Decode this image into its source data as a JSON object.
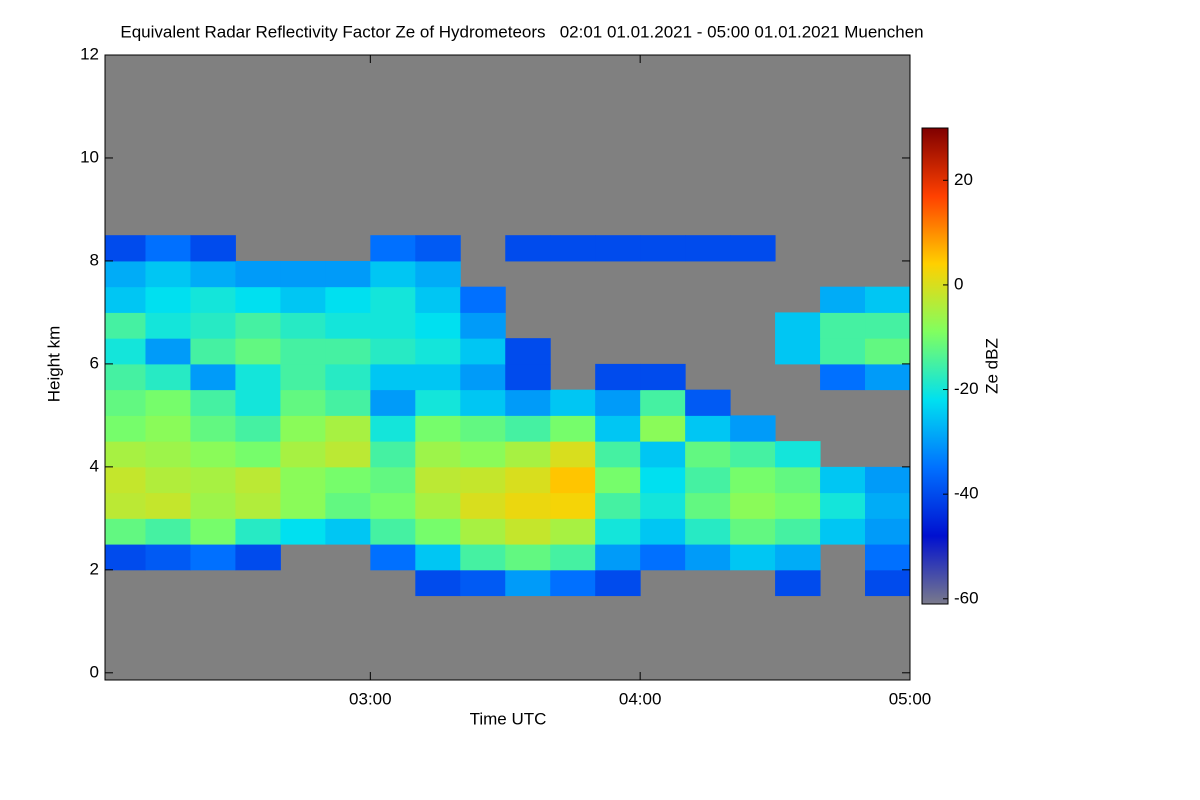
{
  "chart_data": {
    "type": "heatmap",
    "title": "Equivalent Radar Reflectivity Factor Ze of Hydrometeors   02:01 01.01.2021 - 05:00 01.01.2021 Muenchen",
    "x_label": "Time UTC",
    "y_label": "Height km",
    "colorbar_label": "Ze dBZ",
    "background": "#808080",
    "xlim": [
      2.0167,
      5.0
    ],
    "xticks": [
      {
        "value": 3,
        "label": "03:00"
      },
      {
        "value": 4,
        "label": "04:00"
      },
      {
        "value": 5,
        "label": "05:00"
      }
    ],
    "ylim": [
      -0.14,
      12
    ],
    "yticks": [
      0,
      2,
      4,
      6,
      8,
      10,
      12
    ],
    "x_bins": [
      2.0167,
      2.1667,
      2.3333,
      2.5,
      2.6667,
      2.8333,
      3.0,
      3.1667,
      3.3333,
      3.5,
      3.6667,
      3.8333,
      4.0,
      4.1667,
      4.3333,
      4.5,
      4.6667,
      4.8333,
      5.0
    ],
    "y_bins": [
      1.5,
      2.0,
      2.5,
      3.0,
      3.5,
      4.0,
      4.5,
      5.0,
      5.5,
      6.0,
      6.5,
      7.0,
      7.5,
      8.0,
      8.5
    ],
    "values": [
      [
        null,
        null,
        null,
        null,
        null,
        null,
        null,
        -40,
        -38,
        -30,
        -35,
        -40,
        null,
        null,
        null,
        -40,
        null,
        -40
      ],
      [
        -40,
        -38,
        -35,
        -40,
        null,
        null,
        -35,
        -25,
        -15,
        -12,
        -15,
        -30,
        -35,
        -30,
        -25,
        -28,
        null,
        -35
      ],
      [
        -12,
        -15,
        -10,
        -18,
        -22,
        -25,
        -15,
        -10,
        -5,
        -2,
        -5,
        -20,
        -25,
        -18,
        -12,
        -15,
        -25,
        -30
      ],
      [
        -3,
        -2,
        -6,
        -4,
        -8,
        -12,
        -10,
        -5,
        0,
        2,
        3,
        -15,
        -20,
        -12,
        -8,
        -10,
        -20,
        -28
      ],
      [
        -2,
        -4,
        -5,
        -3,
        -8,
        -10,
        -12,
        -3,
        -2,
        0,
        5,
        -10,
        -22,
        -15,
        -10,
        -12,
        -25,
        -30
      ],
      [
        -5,
        -6,
        -8,
        -10,
        -5,
        -3,
        -15,
        -6,
        -8,
        -5,
        0,
        -15,
        -25,
        -12,
        -15,
        -20,
        null,
        null
      ],
      [
        -10,
        -8,
        -12,
        -15,
        -8,
        -5,
        -20,
        -10,
        -12,
        -15,
        -10,
        -25,
        -8,
        -25,
        -30,
        null,
        null,
        null
      ],
      [
        -12,
        -10,
        -15,
        -20,
        -12,
        -15,
        -30,
        -20,
        -25,
        -30,
        -25,
        -30,
        -15,
        -38,
        null,
        null,
        null,
        null
      ],
      [
        -15,
        -18,
        -30,
        -20,
        -15,
        -18,
        -25,
        -25,
        -30,
        -40,
        null,
        -40,
        -40,
        null,
        null,
        null,
        -35,
        -30
      ],
      [
        -20,
        -30,
        -15,
        -12,
        -15,
        -15,
        -18,
        -20,
        -25,
        -40,
        null,
        null,
        null,
        null,
        null,
        -25,
        -15,
        -12
      ],
      [
        -15,
        -20,
        -18,
        -15,
        -18,
        -20,
        -20,
        -22,
        -30,
        null,
        null,
        null,
        null,
        null,
        null,
        -25,
        -15,
        -15
      ],
      [
        -25,
        -22,
        -20,
        -22,
        -25,
        -22,
        -20,
        -25,
        -35,
        null,
        null,
        null,
        null,
        null,
        null,
        null,
        -28,
        -25
      ],
      [
        -28,
        -25,
        -28,
        -30,
        -30,
        -30,
        -25,
        -28,
        null,
        null,
        null,
        null,
        null,
        null,
        null,
        null,
        null,
        null
      ],
      [
        -40,
        -35,
        -40,
        null,
        null,
        null,
        -35,
        -38,
        null,
        -40,
        -40,
        -40,
        -40,
        -40,
        -40,
        null,
        null,
        null
      ]
    ],
    "clim": [
      -61,
      30
    ],
    "cticks": [
      -60,
      -40,
      -20,
      0,
      20
    ],
    "colormap": [
      "#7a7a8c",
      "#0010d0",
      "#0070ff",
      "#00e0f0",
      "#80ff60",
      "#ffd000",
      "#ff4000",
      "#800000"
    ]
  }
}
